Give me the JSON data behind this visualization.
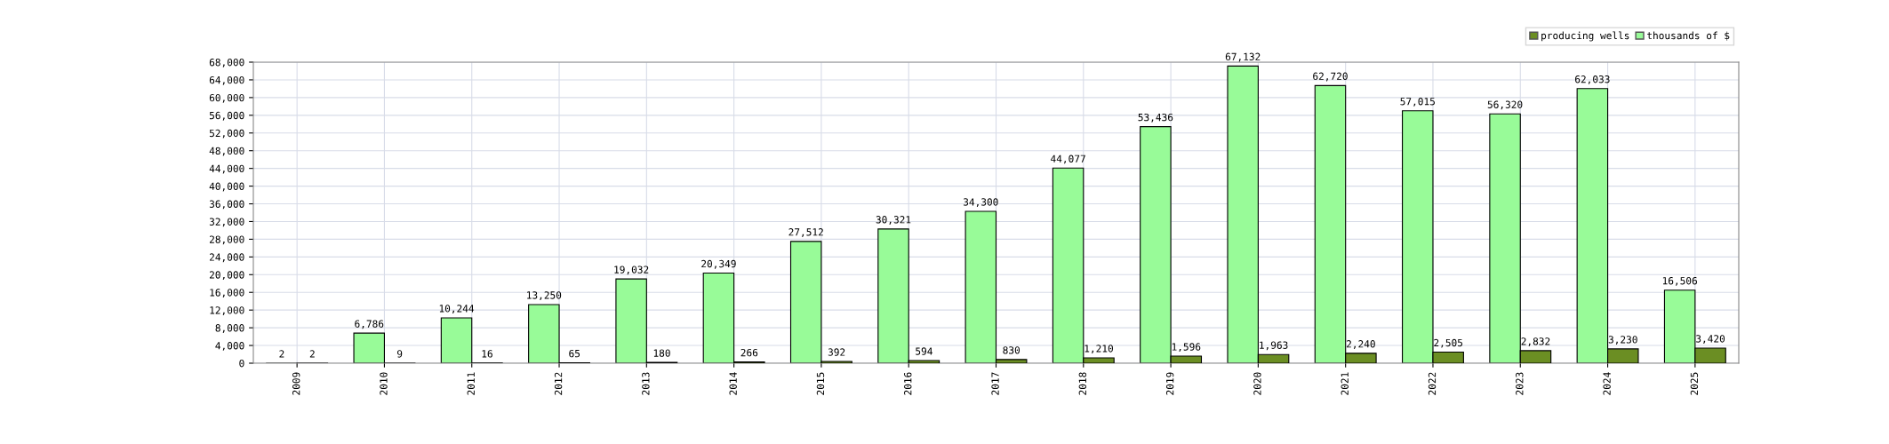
{
  "chart_data": {
    "type": "bar",
    "categories": [
      "2009",
      "2010",
      "2011",
      "2012",
      "2013",
      "2014",
      "2015",
      "2016",
      "2017",
      "2018",
      "2019",
      "2020",
      "2021",
      "2022",
      "2023",
      "2024",
      "2025"
    ],
    "series": [
      {
        "name": "thousands of $",
        "color": "#98fb98",
        "values": [
          2,
          6786,
          10244,
          13250,
          19032,
          20349,
          27512,
          30321,
          34300,
          44077,
          53436,
          67132,
          62720,
          57015,
          56320,
          62033,
          16506
        ],
        "value_labels": [
          "2",
          "6,786",
          "10,244",
          "13,250",
          "19,032",
          "20,349",
          "27,512",
          "30,321",
          "34,300",
          "44,077",
          "53,436",
          "67,132",
          "62,720",
          "57,015",
          "56,320",
          "62,033",
          "16,506"
        ]
      },
      {
        "name": "producing wells",
        "color": "#6b8e23",
        "values": [
          2,
          9,
          16,
          65,
          180,
          266,
          392,
          594,
          830,
          1210,
          1596,
          1963,
          2240,
          2505,
          2832,
          3230,
          3420
        ],
        "value_labels": [
          "2",
          "9",
          "16",
          "65",
          "180",
          "266",
          "392",
          "594",
          "830",
          "1,210",
          "1,596",
          "1,963",
          "2,240",
          "2,505",
          "2,832",
          "3,230",
          "3,420"
        ]
      }
    ],
    "ylim": [
      0,
      68000
    ],
    "yticks": [
      {
        "value": 0,
        "label": "0"
      },
      {
        "value": 4000,
        "label": "4,000"
      },
      {
        "value": 8000,
        "label": "8,000"
      },
      {
        "value": 12000,
        "label": "12,000"
      },
      {
        "value": 16000,
        "label": "16,000"
      },
      {
        "value": 20000,
        "label": "20,000"
      },
      {
        "value": 24000,
        "label": "24,000"
      },
      {
        "value": 28000,
        "label": "28,000"
      },
      {
        "value": 32000,
        "label": "32,000"
      },
      {
        "value": 36000,
        "label": "36,000"
      },
      {
        "value": 40000,
        "label": "40,000"
      },
      {
        "value": 44000,
        "label": "44,000"
      },
      {
        "value": 48000,
        "label": "48,000"
      },
      {
        "value": 52000,
        "label": "52,000"
      },
      {
        "value": 56000,
        "label": "56,000"
      },
      {
        "value": 60000,
        "label": "60,000"
      },
      {
        "value": 64000,
        "label": "64,000"
      },
      {
        "value": 68000,
        "label": "68,000"
      }
    ],
    "grid": true,
    "legend": "top right"
  }
}
